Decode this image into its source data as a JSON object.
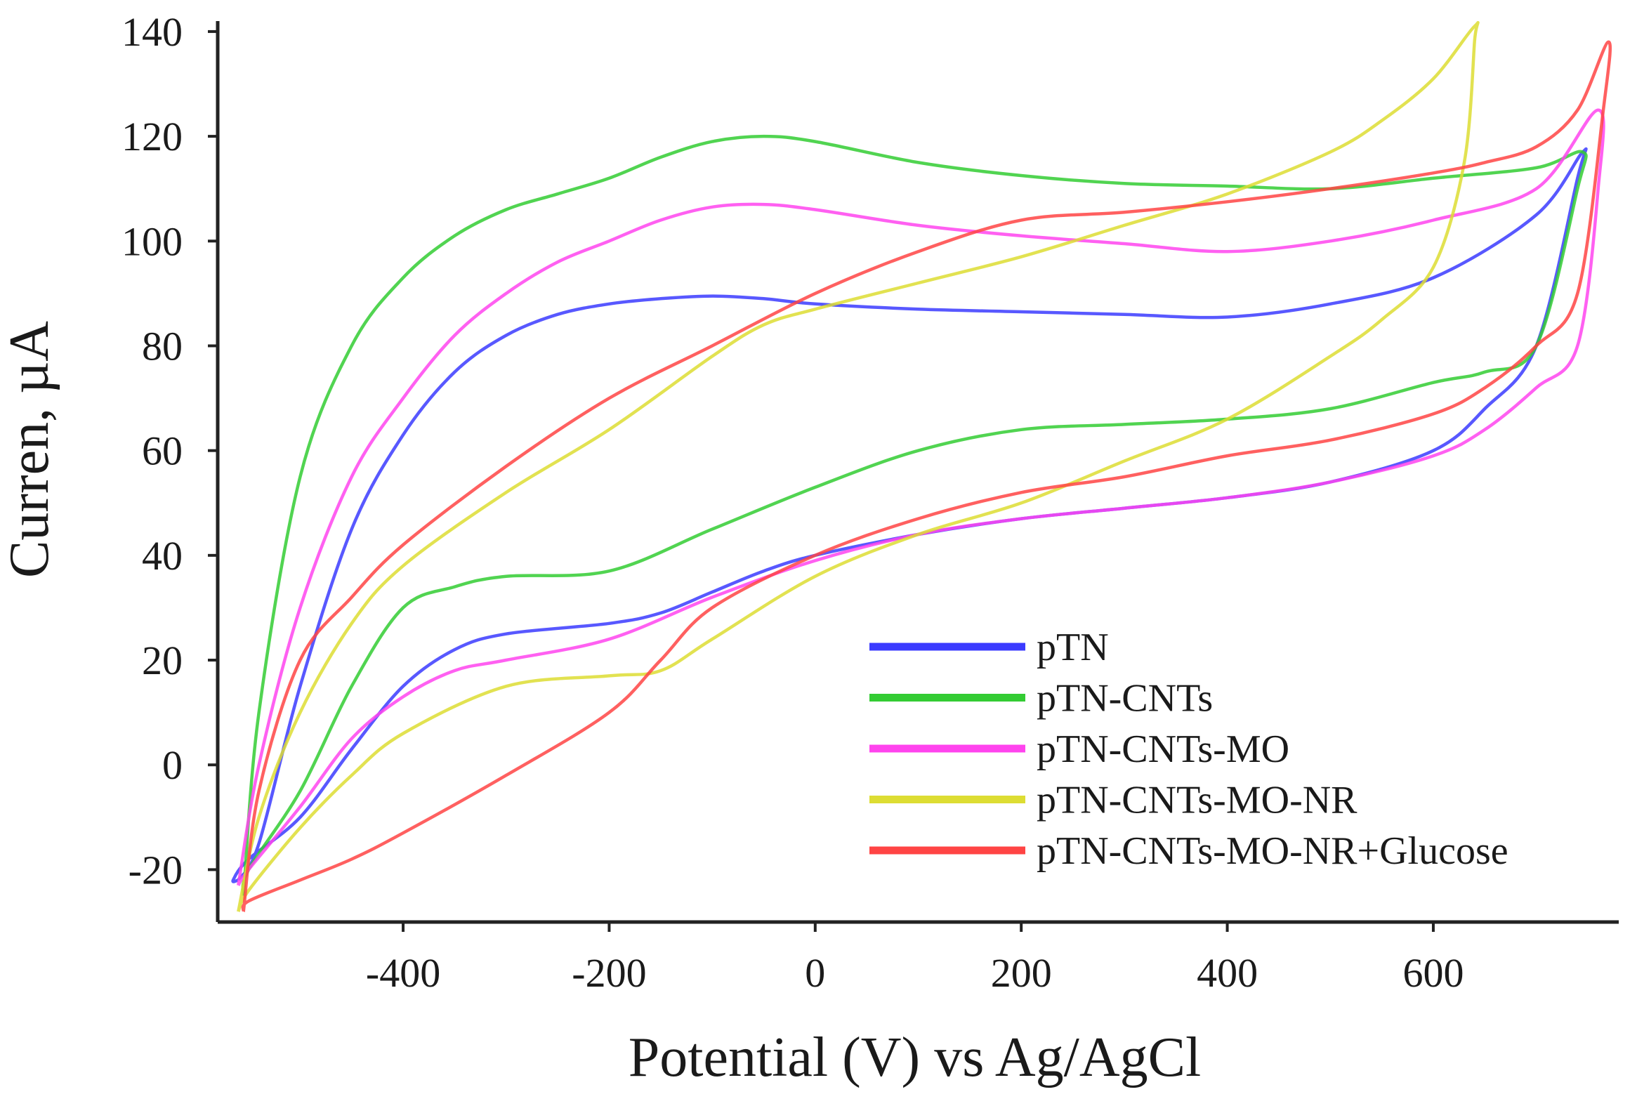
{
  "chart_data": {
    "type": "line",
    "title": "",
    "xlabel": "Potential (V) vs Ag/AgCl",
    "ylabel": "Curren, µA",
    "xlim": [
      -580,
      780
    ],
    "ylim": [
      -30,
      142
    ],
    "xticks": [
      -400,
      -200,
      0,
      200,
      400,
      600
    ],
    "yticks": [
      -20,
      0,
      20,
      40,
      60,
      80,
      100,
      120,
      140
    ],
    "grid": false,
    "legend_position": "bottom-right",
    "series": [
      {
        "name": "pTN",
        "color": "#3b3bff",
        "x": [
          -560,
          -540,
          -500,
          -450,
          -400,
          -350,
          -300,
          -250,
          -200,
          -150,
          -100,
          -50,
          0,
          100,
          200,
          300,
          400,
          500,
          600,
          700,
          745,
          740,
          700,
          650,
          600,
          500,
          400,
          300,
          200,
          100,
          0,
          -50,
          -100,
          -150,
          -200,
          -300,
          -350,
          -400,
          -450,
          -500,
          -550,
          -565,
          -560
        ],
        "y": [
          -22,
          -15,
          15,
          45,
          63,
          75,
          82,
          86,
          88,
          89,
          89.5,
          89,
          88,
          87,
          86.5,
          86,
          85.5,
          88,
          93,
          105,
          117,
          112,
          80,
          68,
          60,
          54,
          51,
          49,
          47,
          44,
          40,
          37,
          33,
          29,
          27,
          25,
          22,
          15,
          3,
          -10,
          -18,
          -22,
          -22
        ]
      },
      {
        "name": "pTN-CNTs",
        "color": "#33cc33",
        "x": [
          -555,
          -540,
          -500,
          -450,
          -400,
          -350,
          -300,
          -250,
          -200,
          -150,
          -100,
          -50,
          0,
          100,
          200,
          300,
          400,
          500,
          600,
          700,
          745,
          740,
          700,
          650,
          600,
          500,
          400,
          300,
          200,
          100,
          0,
          -100,
          -200,
          -300,
          -350,
          -400,
          -450,
          -500,
          -550,
          -555
        ],
        "y": [
          -25,
          10,
          55,
          80,
          93,
          101,
          106,
          109,
          112,
          116,
          119,
          120,
          119,
          115,
          112.5,
          111,
          110.5,
          110,
          112,
          114,
          117,
          110,
          80,
          75,
          73,
          68,
          66,
          65,
          64,
          60,
          53,
          45,
          37,
          36,
          34,
          30,
          15,
          -5,
          -20,
          -25
        ]
      },
      {
        "name": "pTN-CNTs-MO",
        "color": "#ff44ee",
        "x": [
          -560,
          -540,
          -500,
          -450,
          -400,
          -350,
          -300,
          -250,
          -200,
          -150,
          -100,
          -50,
          0,
          100,
          200,
          300,
          400,
          500,
          600,
          700,
          760,
          760,
          740,
          700,
          650,
          600,
          500,
          400,
          300,
          200,
          100,
          0,
          -100,
          -200,
          -300,
          -350,
          -400,
          -450,
          -500,
          -550,
          -560
        ],
        "y": [
          -23,
          0,
          30,
          55,
          70,
          82,
          90,
          96,
          100,
          104,
          106.5,
          107,
          106,
          103,
          101,
          99.5,
          98,
          100,
          104,
          110,
          125,
          110,
          80,
          72,
          64,
          59,
          54,
          51,
          49,
          47,
          44,
          39,
          32,
          24,
          20,
          18,
          13,
          5,
          -8,
          -20,
          -23
        ]
      },
      {
        "name": "pTN-CNTs-MO-NR",
        "color": "#dddd33",
        "x": [
          -560,
          -540,
          -500,
          -450,
          -400,
          -300,
          -200,
          -100,
          -50,
          0,
          100,
          200,
          300,
          400,
          500,
          550,
          600,
          640,
          640,
          630,
          600,
          550,
          500,
          400,
          300,
          200,
          100,
          0,
          -100,
          -150,
          -200,
          -300,
          -400,
          -450,
          -500,
          -550,
          -560
        ],
        "y": [
          -28,
          -10,
          10,
          27,
          38,
          52,
          64,
          78,
          84,
          87,
          92,
          97,
          103,
          109,
          117,
          123,
          131,
          141,
          138,
          115,
          95,
          85,
          78,
          66,
          58,
          50,
          44,
          36,
          24,
          18,
          17,
          15,
          6,
          -2,
          -12,
          -24,
          -28
        ]
      },
      {
        "name": "pTN-CNTs-MO-NR+Glucose",
        "color": "#ff4444",
        "x": [
          -555,
          -540,
          -500,
          -450,
          -400,
          -300,
          -200,
          -100,
          0,
          100,
          200,
          300,
          400,
          500,
          600,
          650,
          700,
          740,
          770,
          765,
          740,
          700,
          650,
          600,
          500,
          400,
          300,
          200,
          100,
          0,
          -100,
          -150,
          -200,
          -300,
          -400,
          -450,
          -500,
          -550,
          -555
        ],
        "y": [
          -28,
          -5,
          20,
          32,
          42,
          57,
          70,
          80,
          90,
          98,
          104,
          105.5,
          107.5,
          110,
          113,
          115,
          118,
          125,
          138,
          125,
          90,
          80,
          72,
          67,
          62,
          59,
          55,
          52,
          47,
          40,
          30,
          20,
          10,
          -2,
          -13,
          -18,
          -22,
          -26,
          -28
        ]
      }
    ]
  }
}
